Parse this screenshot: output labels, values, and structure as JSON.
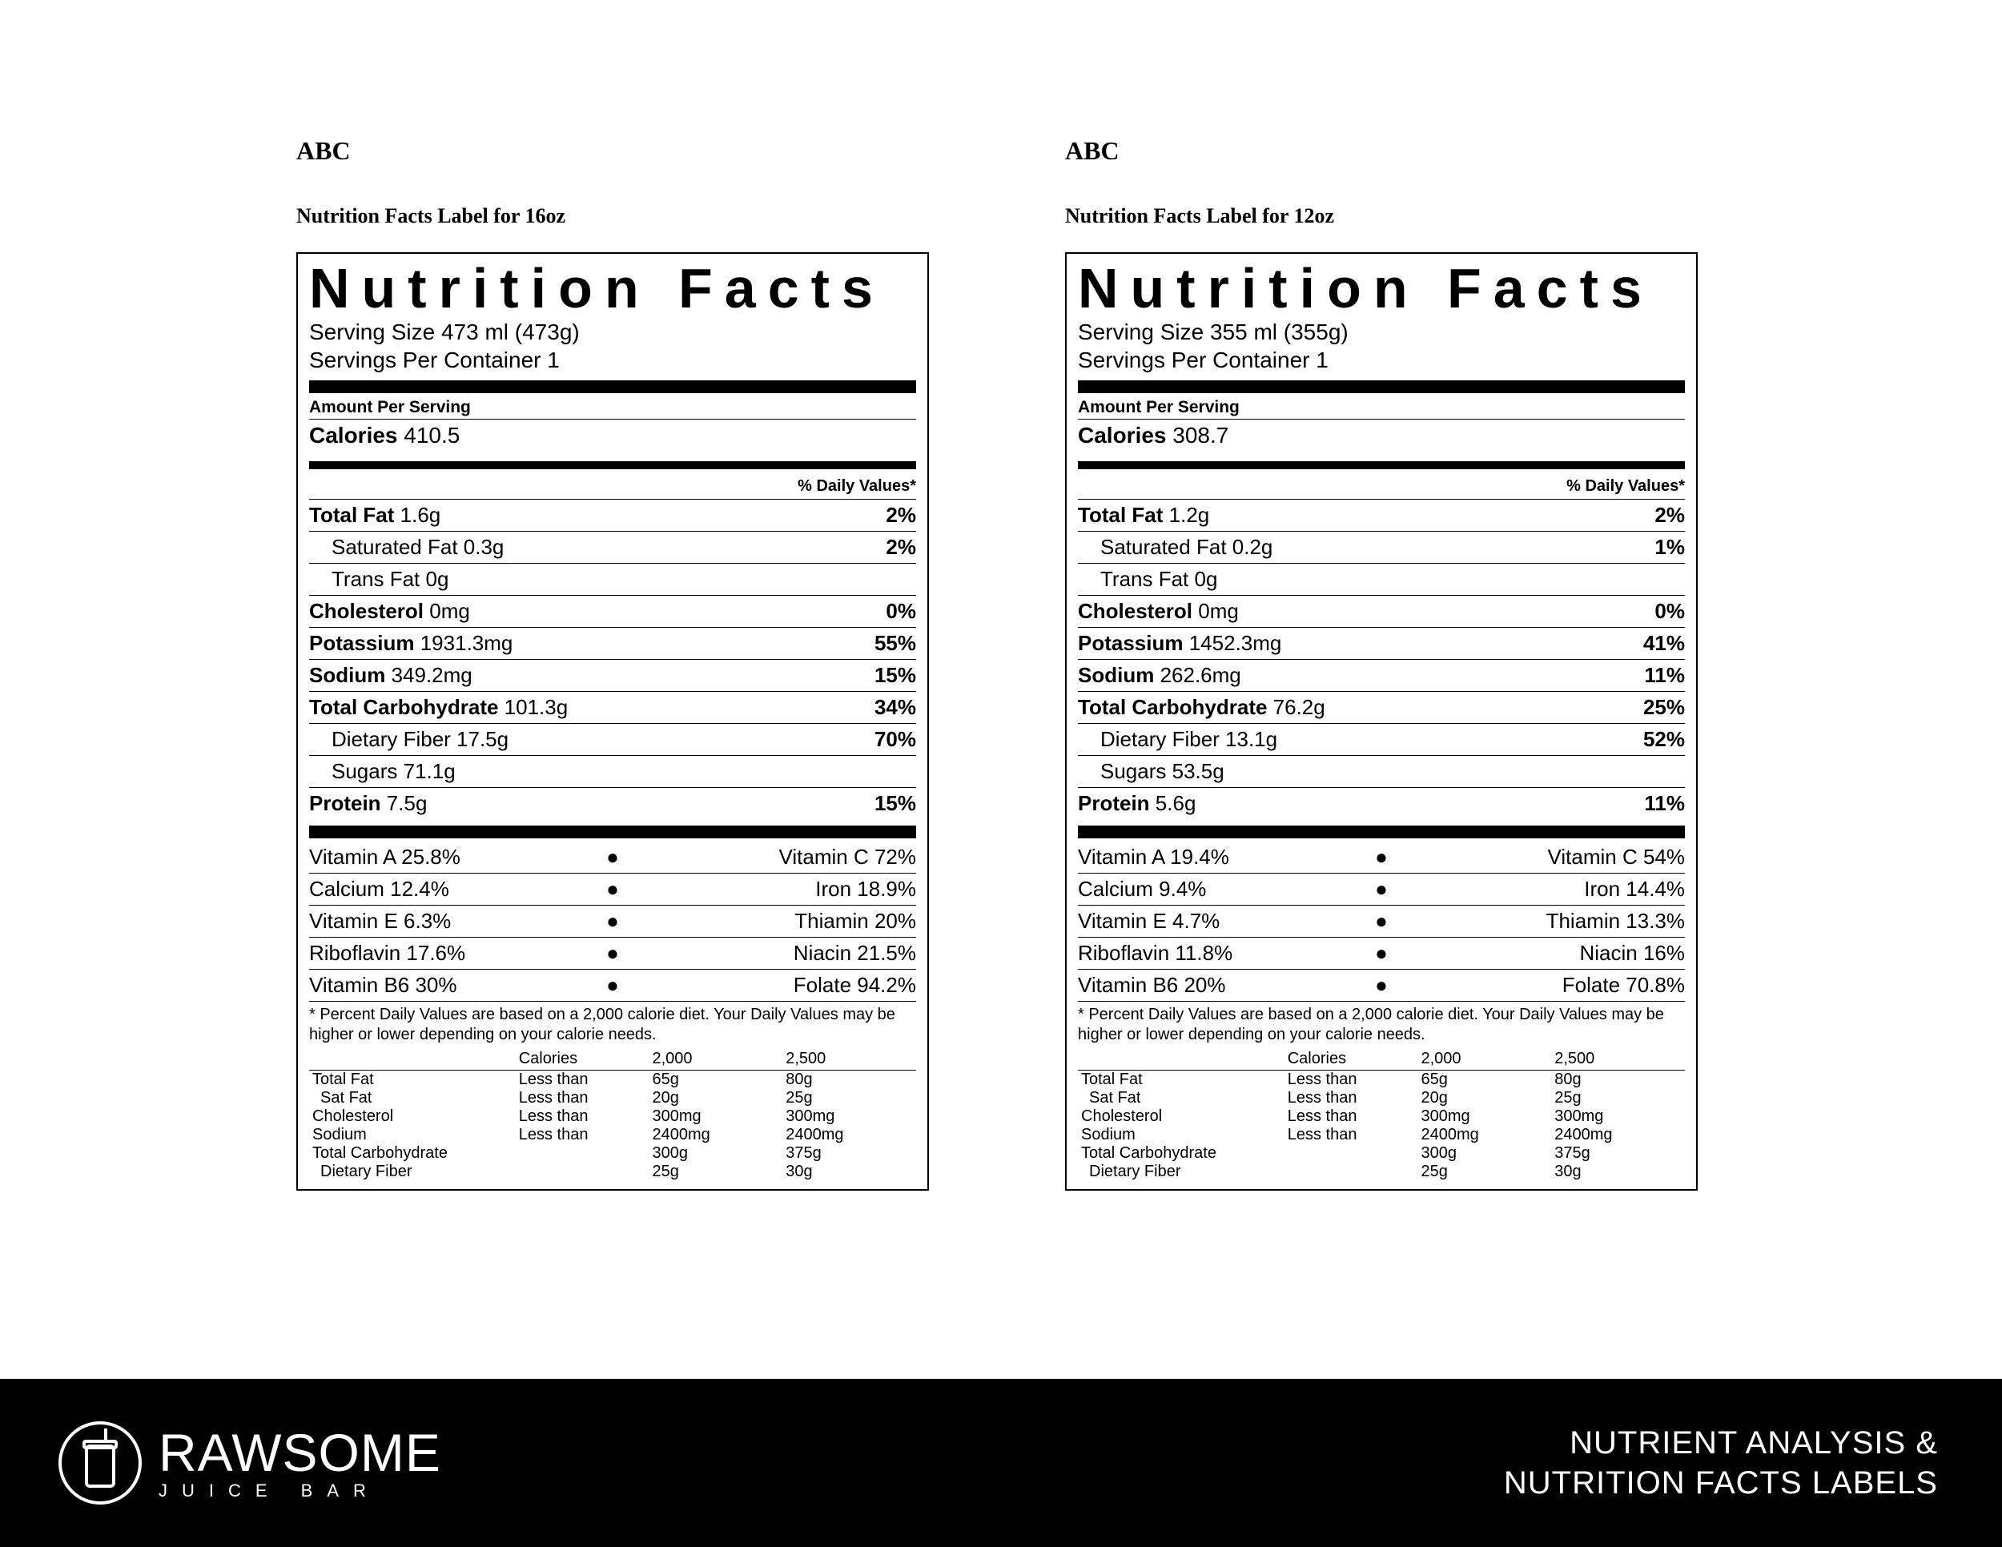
{
  "panels": [
    {
      "product": "ABC",
      "label_title": "Nutrition Facts Label for 16oz",
      "heading": "Nutrition Facts",
      "serving_size": "Serving Size 473 ml (473g)",
      "servings_per": "Servings Per Container 1",
      "amount_per_serving": "Amount Per Serving",
      "calories_label": "Calories",
      "calories_value": "410.5",
      "dv_header": "% Daily Values*",
      "nutrients": [
        {
          "name": "Total Fat",
          "amount": "1.6g",
          "dv": "2%",
          "bold": true,
          "indent": false
        },
        {
          "name": "Saturated Fat",
          "amount": "0.3g",
          "dv": "2%",
          "bold": false,
          "indent": true
        },
        {
          "name": "Trans Fat",
          "amount": "0g",
          "dv": "",
          "bold": false,
          "indent": true
        },
        {
          "name": "Cholesterol",
          "amount": "0mg",
          "dv": "0%",
          "bold": true,
          "indent": false
        },
        {
          "name": "Potassium",
          "amount": "1931.3mg",
          "dv": "55%",
          "bold": true,
          "indent": false
        },
        {
          "name": "Sodium",
          "amount": "349.2mg",
          "dv": "15%",
          "bold": true,
          "indent": false
        },
        {
          "name": "Total Carbohydrate",
          "amount": "101.3g",
          "dv": "34%",
          "bold": true,
          "indent": false
        },
        {
          "name": "Dietary Fiber",
          "amount": "17.5g",
          "dv": "70%",
          "bold": false,
          "indent": true
        },
        {
          "name": "Sugars",
          "amount": "71.1g",
          "dv": "",
          "bold": false,
          "indent": true
        },
        {
          "name": "Protein",
          "amount": "7.5g",
          "dv": "15%",
          "bold": true,
          "indent": false
        }
      ],
      "vitamins": [
        {
          "l": "Vitamin A 25.8%",
          "r": "Vitamin C 72%"
        },
        {
          "l": "Calcium 12.4%",
          "r": "Iron 18.9%"
        },
        {
          "l": "Vitamin E 6.3%",
          "r": "Thiamin 20%"
        },
        {
          "l": "Riboflavin 17.6%",
          "r": "Niacin 21.5%"
        },
        {
          "l": "Vitamin B6 30%",
          "r": "Folate 94.2%"
        }
      ],
      "note": "* Percent Daily Values are based on a 2,000 calorie diet. Your Daily Values may be higher or lower depending on your calorie needs.",
      "ref_head": [
        "",
        "Calories",
        "2,000",
        "2,500"
      ],
      "ref_rows": [
        [
          "Total Fat",
          "Less than",
          "65g",
          "80g",
          false
        ],
        [
          "Sat Fat",
          "Less than",
          "20g",
          "25g",
          true
        ],
        [
          "Cholesterol",
          "Less than",
          "300mg",
          "300mg",
          false
        ],
        [
          "Sodium",
          "Less than",
          "2400mg",
          "2400mg",
          false
        ],
        [
          "Total Carbohydrate",
          "",
          "300g",
          "375g",
          false
        ],
        [
          "Dietary Fiber",
          "",
          "25g",
          "30g",
          true
        ]
      ]
    },
    {
      "product": "ABC",
      "label_title": "Nutrition Facts Label for 12oz",
      "heading": "Nutrition Facts",
      "serving_size": "Serving Size 355 ml (355g)",
      "servings_per": "Servings Per Container 1",
      "amount_per_serving": "Amount Per Serving",
      "calories_label": "Calories",
      "calories_value": "308.7",
      "dv_header": "% Daily Values*",
      "nutrients": [
        {
          "name": "Total Fat",
          "amount": "1.2g",
          "dv": "2%",
          "bold": true,
          "indent": false
        },
        {
          "name": "Saturated Fat",
          "amount": "0.2g",
          "dv": "1%",
          "bold": false,
          "indent": true
        },
        {
          "name": "Trans Fat",
          "amount": "0g",
          "dv": "",
          "bold": false,
          "indent": true
        },
        {
          "name": "Cholesterol",
          "amount": "0mg",
          "dv": "0%",
          "bold": true,
          "indent": false
        },
        {
          "name": "Potassium",
          "amount": "1452.3mg",
          "dv": "41%",
          "bold": true,
          "indent": false
        },
        {
          "name": "Sodium",
          "amount": "262.6mg",
          "dv": "11%",
          "bold": true,
          "indent": false
        },
        {
          "name": "Total Carbohydrate",
          "amount": "76.2g",
          "dv": "25%",
          "bold": true,
          "indent": false
        },
        {
          "name": "Dietary Fiber",
          "amount": "13.1g",
          "dv": "52%",
          "bold": false,
          "indent": true
        },
        {
          "name": "Sugars",
          "amount": "53.5g",
          "dv": "",
          "bold": false,
          "indent": true
        },
        {
          "name": "Protein",
          "amount": "5.6g",
          "dv": "11%",
          "bold": true,
          "indent": false
        }
      ],
      "vitamins": [
        {
          "l": "Vitamin A 19.4%",
          "r": "Vitamin C 54%"
        },
        {
          "l": "Calcium 9.4%",
          "r": "Iron 14.4%"
        },
        {
          "l": "Vitamin E 4.7%",
          "r": "Thiamin 13.3%"
        },
        {
          "l": "Riboflavin 11.8%",
          "r": "Niacin 16%"
        },
        {
          "l": "Vitamin B6 20%",
          "r": "Folate 70.8%"
        }
      ],
      "note": "* Percent Daily Values are based on a 2,000 calorie diet. Your Daily Values may be higher or lower depending on your calorie needs.",
      "ref_head": [
        "",
        "Calories",
        "2,000",
        "2,500"
      ],
      "ref_rows": [
        [
          "Total Fat",
          "Less than",
          "65g",
          "80g",
          false
        ],
        [
          "Sat Fat",
          "Less than",
          "20g",
          "25g",
          true
        ],
        [
          "Cholesterol",
          "Less than",
          "300mg",
          "300mg",
          false
        ],
        [
          "Sodium",
          "Less than",
          "2400mg",
          "2400mg",
          false
        ],
        [
          "Total Carbohydrate",
          "",
          "300g",
          "375g",
          false
        ],
        [
          "Dietary Fiber",
          "",
          "25g",
          "30g",
          true
        ]
      ]
    }
  ],
  "footer": {
    "brand_name": "RAWSOME",
    "brand_sub": "JUICE BAR",
    "right_line1": "NUTRIENT ANALYSIS &",
    "right_line2": "NUTRITION FACTS LABELS"
  },
  "colors": {
    "border": "#000000",
    "bg": "#ffffff",
    "footer_bg": "#000000",
    "footer_fg": "#ffffff"
  }
}
